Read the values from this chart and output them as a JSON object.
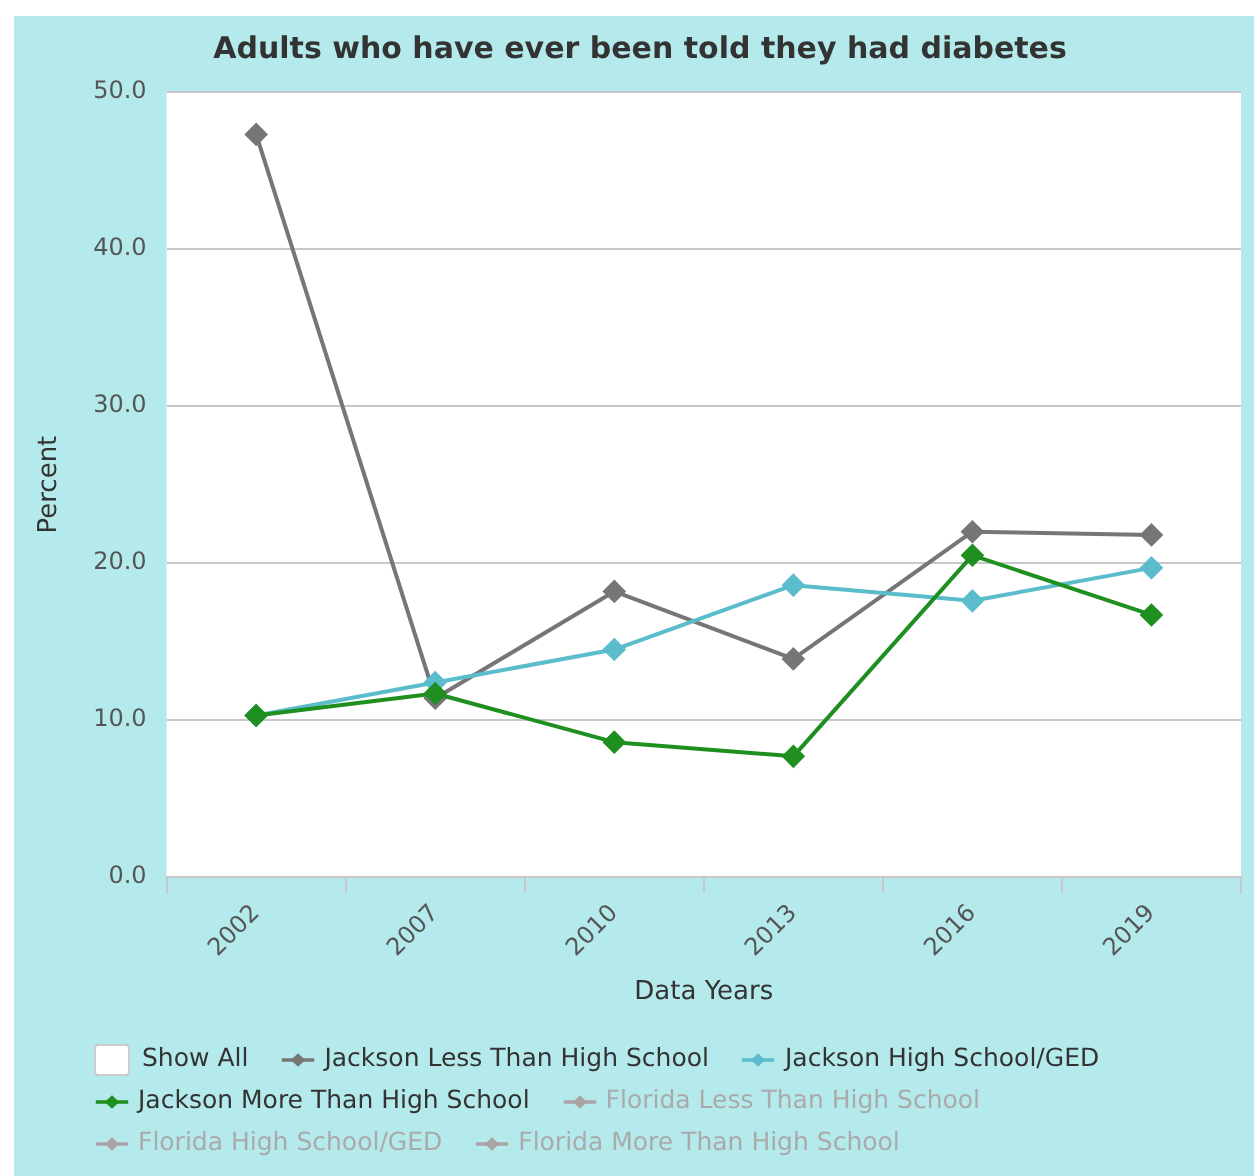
{
  "chart_data": {
    "type": "line",
    "title": "Adults who have ever been told they had diabetes",
    "xlabel": "Data Years",
    "ylabel": "Percent",
    "categories": [
      "2002",
      "2007",
      "2010",
      "2013",
      "2016",
      "2019"
    ],
    "series": [
      {
        "name": "Jackson Less Than High School",
        "color": "#767676",
        "values": [
          47.3,
          11.4,
          18.2,
          13.9,
          22.0,
          21.8
        ]
      },
      {
        "name": "Jackson High School/GED",
        "color": "#5bbccc",
        "values": [
          10.3,
          12.4,
          14.5,
          18.6,
          17.6,
          19.7
        ]
      },
      {
        "name": "Jackson More Than High School",
        "color": "#1f8f1f",
        "values": [
          10.3,
          11.7,
          8.6,
          7.7,
          20.5,
          16.7
        ]
      },
      {
        "name": "Florida Less Than High School",
        "color": "#aaa4a4",
        "values": [
          null,
          null,
          null,
          null,
          null,
          null
        ]
      },
      {
        "name": "Florida High School/GED",
        "color": "#aaa4a4",
        "values": [
          null,
          null,
          null,
          null,
          null,
          null
        ]
      },
      {
        "name": "Florida More Than High School",
        "color": "#aaa4a4",
        "values": [
          null,
          null,
          null,
          null,
          null,
          null
        ]
      }
    ],
    "annotations": [
      "Show All"
    ],
    "ylim": [
      0,
      50
    ],
    "yticks": [
      {
        "value": 0,
        "label": "0.0"
      },
      {
        "value": 10,
        "label": "10.0"
      },
      {
        "value": 20,
        "label": "20.0"
      },
      {
        "value": 30,
        "label": "30.0"
      },
      {
        "value": 40,
        "label": "40.0"
      },
      {
        "value": 50,
        "label": "50.0"
      }
    ],
    "grid": "y",
    "legend": "bottom",
    "marker": "diamond",
    "line_style": "solid"
  }
}
